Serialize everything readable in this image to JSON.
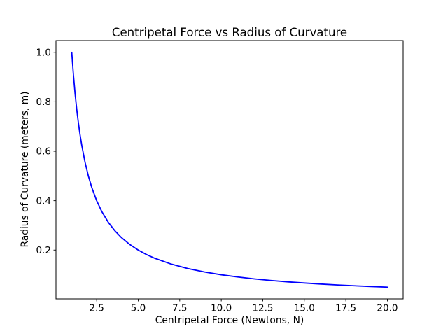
{
  "chart_data": {
    "type": "line",
    "title": "Centripetal Force vs Radius of Curvature",
    "xlabel": "Centripetal Force (Newtons, N)",
    "ylabel": "Radius of Curvature (meters, m)",
    "xlim": [
      0.05,
      20.95
    ],
    "ylim": [
      0.0025,
      1.0475
    ],
    "grid": false,
    "legend": null,
    "background_color": "#ffffff",
    "text_color": "#000000",
    "spine_color": "#000000",
    "xticks": {
      "values": [
        2.5,
        5.0,
        7.5,
        10.0,
        12.5,
        15.0,
        17.5,
        20.0
      ],
      "labels": [
        "2.5",
        "5.0",
        "7.5",
        "10.0",
        "12.5",
        "15.0",
        "17.5",
        "20.0"
      ]
    },
    "yticks": {
      "values": [
        0.2,
        0.4,
        0.6,
        0.8,
        1.0
      ],
      "labels": [
        "0.2",
        "0.4",
        "0.6",
        "0.8",
        "1.0"
      ]
    },
    "series": [
      {
        "name": "radius-vs-force-curve",
        "color": "#0000ff",
        "x": [
          1,
          1.1,
          1.2,
          1.3,
          1.4,
          1.5,
          1.6,
          1.8,
          2,
          2.2,
          2.5,
          2.8,
          3.2,
          3.6,
          4,
          4.5,
          5,
          5.5,
          6,
          7,
          8,
          9,
          10,
          11,
          12,
          13,
          14,
          15,
          16,
          17,
          18,
          19,
          20
        ],
        "y": [
          1.0,
          0.9091,
          0.8333,
          0.7692,
          0.7143,
          0.6667,
          0.625,
          0.5556,
          0.5,
          0.4545,
          0.4,
          0.3571,
          0.3125,
          0.2778,
          0.25,
          0.2222,
          0.2,
          0.1818,
          0.1667,
          0.1429,
          0.125,
          0.1111,
          0.1,
          0.0909,
          0.0833,
          0.0769,
          0.0714,
          0.0667,
          0.0625,
          0.0588,
          0.0556,
          0.0526,
          0.05
        ]
      }
    ]
  }
}
